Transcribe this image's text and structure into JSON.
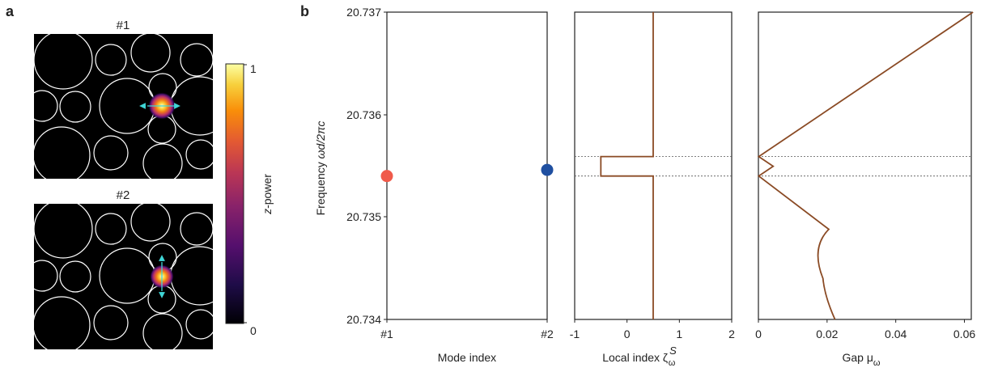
{
  "panel_a": {
    "letter": "a",
    "images": [
      {
        "title": "#1",
        "arrow": "horizontal"
      },
      {
        "title": "#2",
        "arrow": "vertical"
      }
    ],
    "colorbar": {
      "label_prefix": "z",
      "label_suffix": "-power",
      "max": "1",
      "min": "0"
    },
    "colors": {
      "circle_stroke": "#ffffff",
      "arrow": "#3fd6d6",
      "background": "#000000"
    }
  },
  "panel_b": {
    "letter": "b",
    "y_label_prefix": "Frequency  ",
    "y_label_var": "ωd/2πc",
    "y_ticks": [
      "20.737",
      "20.736",
      "20.735",
      "20.734"
    ],
    "dashed_levels": [
      20.73559,
      20.7354
    ],
    "line_color": "#8a4a24"
  },
  "chart_data": [
    {
      "type": "scatter",
      "xlabel": "Mode index",
      "ylabel": "Frequency ωd/2πc",
      "categories": [
        "#1",
        "#2"
      ],
      "x_tick_labels": [
        "#1",
        "#2"
      ],
      "ylim": [
        20.734,
        20.737
      ],
      "points": [
        {
          "x": "#1",
          "y": 20.7354,
          "color": "#f05a4a"
        },
        {
          "x": "#2",
          "y": 20.73546,
          "color": "#1f4fa0"
        }
      ]
    },
    {
      "type": "line",
      "xlabel": "Local index ζ",
      "xlabel_sup": "S",
      "xlabel_sub": "ω",
      "xlim": [
        -1,
        2
      ],
      "x_tick_labels": [
        "-1",
        "0",
        "1",
        "2"
      ],
      "x_tick_values": [
        -1,
        0,
        1,
        2
      ],
      "ylim": [
        20.734,
        20.737
      ],
      "points": [
        {
          "x": 0.5,
          "y": 20.734
        },
        {
          "x": 0.5,
          "y": 20.7354
        },
        {
          "x": -0.5,
          "y": 20.7354
        },
        {
          "x": -0.5,
          "y": 20.73559
        },
        {
          "x": 0.5,
          "y": 20.73559
        },
        {
          "x": 0.5,
          "y": 20.737
        }
      ]
    },
    {
      "type": "line",
      "xlabel": "Gap μ",
      "xlabel_sub": "ω",
      "xlim": [
        0,
        0.062
      ],
      "x_tick_labels": [
        "0",
        "0.02",
        "0.04",
        "0.06"
      ],
      "x_tick_values": [
        0,
        0.02,
        0.04,
        0.06
      ],
      "ylim": [
        20.734,
        20.737
      ],
      "points": [
        {
          "x": 0.0625,
          "y": 20.737
        },
        {
          "x": 0.0001,
          "y": 20.73559
        },
        {
          "x": 0.0043,
          "y": 20.735495
        },
        {
          "x": 0.0001,
          "y": 20.7354
        },
        {
          "x": 0.0205,
          "y": 20.73488
        },
        {
          "x": 0.0185,
          "y": 20.7347
        },
        {
          "x": 0.0188,
          "y": 20.7344
        },
        {
          "x": 0.0223,
          "y": 20.734
        }
      ]
    }
  ]
}
